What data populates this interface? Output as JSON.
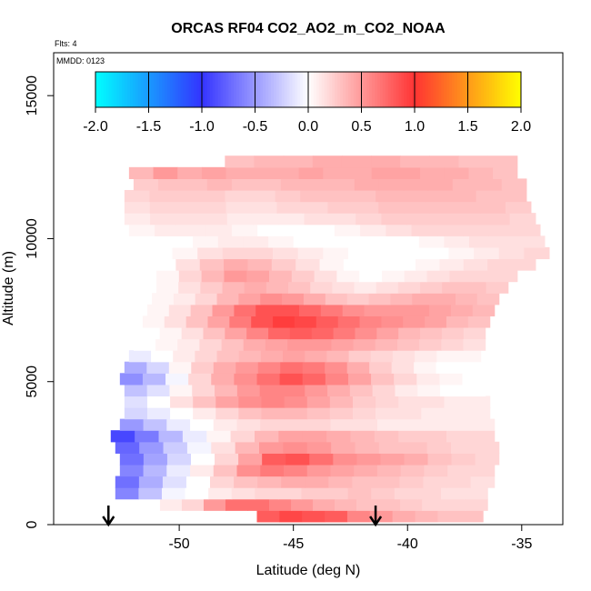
{
  "chart_data": {
    "type": "heatmap",
    "title": "ORCAS RF04 CO2_AO2_m_CO2_NOAA",
    "subtitle_flights": "Flts: 4",
    "subtitle_mmdd": "MMDD: 0123",
    "xlabel": "Latitude (deg N)",
    "ylabel": "Altitude (m)",
    "xlim": [
      -55.5,
      -33.2
    ],
    "ylim": [
      0,
      16500
    ],
    "x_ticks": [
      -50,
      -45,
      -40,
      -35
    ],
    "x_tick_labels": [
      "-50",
      "-45",
      "-40",
      "-35"
    ],
    "y_ticks": [
      0,
      5000,
      10000,
      15000
    ],
    "y_tick_labels": [
      "0",
      "5000",
      "10000",
      "15000"
    ],
    "colorbar": {
      "range": [
        -2.0,
        2.0
      ],
      "ticks": [
        -2.0,
        -1.5,
        -1.0,
        -0.5,
        0.0,
        0.5,
        1.0,
        1.5,
        2.0
      ],
      "tick_labels": [
        "-2.0",
        "-1.5",
        "-1.0",
        "-0.5",
        "0.0",
        "0.5",
        "1.0",
        "1.5",
        "2.0"
      ],
      "colors": [
        "#00ffff",
        "#3333ff",
        "#ffffff",
        "#ff3333",
        "#ffff00"
      ]
    },
    "markers": [
      {
        "label": "down-arrow",
        "x": -53.1
      },
      {
        "label": "down-arrow",
        "x": -41.4
      }
    ],
    "bands": [
      {
        "alt": 300,
        "lat_start": -46.6,
        "lat_end": -36.7,
        "values": [
          0.8,
          0.9,
          0.85,
          0.8,
          0.6,
          0.5,
          0.4,
          0.35,
          0.3,
          0.3
        ]
      },
      {
        "alt": 700,
        "lat_start": -51.8,
        "lat_end": -36.5,
        "values": [
          0.0,
          0.1,
          0.2,
          0.5,
          0.7,
          0.7,
          0.6,
          0.5,
          0.4,
          0.35,
          0.3,
          0.3,
          0.25,
          0.2,
          0.2,
          0.2
        ]
      },
      {
        "alt": 1100,
        "lat_start": -52.8,
        "lat_end": -36.5,
        "values": [
          -0.6,
          -0.3,
          -0.05,
          0.0,
          0.1,
          0.15,
          0.2,
          0.2,
          0.25,
          0.25,
          0.3,
          0.25,
          0.2,
          0.2,
          0.15,
          0.15
        ]
      },
      {
        "alt": 1500,
        "lat_start": -52.8,
        "lat_end": -36.2,
        "values": [
          -0.7,
          -0.4,
          -0.15,
          0.0,
          0.2,
          0.3,
          0.35,
          0.4,
          0.4,
          0.35,
          0.3,
          0.3,
          0.25,
          0.2,
          0.2,
          0.15
        ]
      },
      {
        "alt": 1900,
        "lat_start": -52.6,
        "lat_end": -36.2,
        "values": [
          -0.6,
          -0.35,
          -0.1,
          0.1,
          0.3,
          0.55,
          0.65,
          0.6,
          0.5,
          0.45,
          0.4,
          0.35,
          0.3,
          0.25,
          0.2,
          0.2
        ]
      },
      {
        "alt": 2300,
        "lat_start": -52.6,
        "lat_end": -36.0,
        "values": [
          -0.7,
          -0.45,
          -0.2,
          0.0,
          0.2,
          0.45,
          0.8,
          0.85,
          0.7,
          0.55,
          0.5,
          0.45,
          0.4,
          0.3,
          0.25,
          0.2
        ]
      },
      {
        "alt": 2700,
        "lat_start": -52.8,
        "lat_end": -36.0,
        "values": [
          -0.75,
          -0.5,
          -0.25,
          -0.05,
          0.15,
          0.35,
          0.5,
          0.55,
          0.5,
          0.4,
          0.35,
          0.3,
          0.3,
          0.25,
          0.2,
          0.2
        ]
      },
      {
        "alt": 3100,
        "lat_start": -53.0,
        "lat_end": -36.2,
        "values": [
          -0.9,
          -0.65,
          -0.35,
          -0.1,
          0.05,
          0.2,
          0.35,
          0.45,
          0.45,
          0.4,
          0.35,
          0.3,
          0.25,
          0.25,
          0.2,
          0.2
        ]
      },
      {
        "alt": 3500,
        "lat_start": -52.6,
        "lat_end": -36.2,
        "values": [
          -0.5,
          -0.3,
          -0.1,
          0.0,
          0.1,
          0.15,
          0.2,
          0.2,
          0.2,
          0.15,
          0.15,
          0.1,
          0.1,
          0.1,
          0.1,
          0.1
        ]
      },
      {
        "alt": 3900,
        "lat_start": -52.4,
        "lat_end": -36.4,
        "values": [
          -0.2,
          -0.1,
          0.0,
          0.1,
          0.2,
          0.3,
          0.35,
          0.35,
          0.3,
          0.25,
          0.2,
          0.15,
          0.15,
          0.1,
          0.1,
          0.1
        ]
      },
      {
        "alt": 4300,
        "lat_start": -52.4,
        "lat_end": -36.4,
        "values": [
          -0.15,
          0.0,
          0.15,
          0.3,
          0.45,
          0.55,
          0.6,
          0.55,
          0.45,
          0.35,
          0.25,
          0.2,
          0.15,
          0.15,
          0.1,
          0.1
        ]
      },
      {
        "alt": 4700,
        "lat_start": -52.4,
        "lat_end": -36.6,
        "values": [
          -0.3,
          -0.15,
          0.05,
          0.2,
          0.35,
          0.5,
          0.6,
          0.6,
          0.5,
          0.4,
          0.3,
          0.2,
          0.1,
          0.05,
          0.0,
          0.0
        ]
      },
      {
        "alt": 5100,
        "lat_start": -52.6,
        "lat_end": -36.6,
        "values": [
          -0.55,
          -0.35,
          -0.05,
          0.2,
          0.4,
          0.55,
          0.7,
          0.85,
          0.75,
          0.6,
          0.45,
          0.3,
          0.2,
          0.1,
          0.05,
          0.0
        ]
      },
      {
        "alt": 5500,
        "lat_start": -52.4,
        "lat_end": -36.8,
        "values": [
          -0.4,
          -0.2,
          0.05,
          0.25,
          0.4,
          0.5,
          0.6,
          0.7,
          0.65,
          0.55,
          0.4,
          0.25,
          0.15,
          0.05,
          0.0,
          0.0
        ]
      },
      {
        "alt": 5900,
        "lat_start": -52.2,
        "lat_end": -36.8,
        "values": [
          -0.1,
          0.0,
          0.1,
          0.2,
          0.3,
          0.35,
          0.4,
          0.45,
          0.4,
          0.35,
          0.25,
          0.2,
          0.15,
          0.1,
          0.05,
          0.05
        ]
      },
      {
        "alt": 6300,
        "lat_start": -52.0,
        "lat_end": -36.6,
        "values": [
          0.0,
          0.05,
          0.1,
          0.2,
          0.3,
          0.4,
          0.45,
          0.5,
          0.5,
          0.45,
          0.4,
          0.35,
          0.3,
          0.25,
          0.2,
          0.15
        ]
      },
      {
        "alt": 6700,
        "lat_start": -51.8,
        "lat_end": -36.6,
        "values": [
          0.0,
          0.05,
          0.15,
          0.3,
          0.45,
          0.6,
          0.75,
          0.8,
          0.75,
          0.65,
          0.55,
          0.45,
          0.35,
          0.3,
          0.25,
          0.2
        ]
      },
      {
        "alt": 7100,
        "lat_start": -51.6,
        "lat_end": -36.4,
        "values": [
          0.05,
          0.15,
          0.3,
          0.45,
          0.65,
          0.85,
          0.95,
          0.9,
          0.8,
          0.7,
          0.6,
          0.55,
          0.5,
          0.45,
          0.35,
          0.3
        ]
      },
      {
        "alt": 7500,
        "lat_start": -51.4,
        "lat_end": -36.2,
        "values": [
          0.05,
          0.15,
          0.3,
          0.5,
          0.7,
          0.85,
          0.85,
          0.75,
          0.65,
          0.55,
          0.5,
          0.5,
          0.5,
          0.45,
          0.4,
          0.35
        ]
      },
      {
        "alt": 7900,
        "lat_start": -51.2,
        "lat_end": -36.0,
        "values": [
          0.05,
          0.1,
          0.2,
          0.35,
          0.45,
          0.55,
          0.5,
          0.4,
          0.3,
          0.25,
          0.3,
          0.35,
          0.4,
          0.4,
          0.35,
          0.3
        ]
      },
      {
        "alt": 8300,
        "lat_start": -51.0,
        "lat_end": -35.6,
        "values": [
          0.05,
          0.15,
          0.25,
          0.35,
          0.4,
          0.35,
          0.3,
          0.2,
          0.15,
          0.1,
          0.15,
          0.2,
          0.25,
          0.3,
          0.3,
          0.25
        ]
      },
      {
        "alt": 8700,
        "lat_start": -51.0,
        "lat_end": -35.2,
        "values": [
          0.05,
          0.2,
          0.35,
          0.5,
          0.45,
          0.35,
          0.25,
          0.15,
          0.05,
          0.0,
          0.05,
          0.1,
          0.15,
          0.2,
          0.2,
          0.2
        ]
      },
      {
        "alt": 9100,
        "lat_start": -51.2,
        "lat_end": -34.4,
        "values": [
          0.0,
          0.15,
          0.3,
          0.4,
          0.35,
          0.25,
          0.15,
          0.05,
          0.0,
          0.0,
          0.0,
          0.05,
          0.1,
          0.15,
          0.2,
          0.2
        ]
      },
      {
        "alt": 9500,
        "lat_start": -51.4,
        "lat_end": -33.8,
        "values": [
          0.0,
          0.05,
          0.15,
          0.2,
          0.2,
          0.15,
          0.1,
          0.05,
          0.0,
          0.0,
          0.0,
          0.0,
          0.05,
          0.1,
          0.15,
          0.2
        ]
      },
      {
        "alt": 9900,
        "lat_start": -51.6,
        "lat_end": -34.0,
        "values": [
          0.0,
          0.0,
          0.05,
          0.1,
          0.1,
          0.05,
          0.0,
          0.0,
          0.0,
          0.0,
          0.0,
          0.05,
          0.1,
          0.15,
          0.15,
          0.15
        ]
      },
      {
        "alt": 10300,
        "lat_start": -52.2,
        "lat_end": -34.2,
        "values": [
          0.05,
          0.1,
          0.1,
          0.1,
          0.05,
          0.0,
          0.0,
          0.0,
          0.05,
          0.1,
          0.15,
          0.2,
          0.2,
          0.2,
          0.2,
          0.2
        ]
      },
      {
        "alt": 10700,
        "lat_start": -52.4,
        "lat_end": -34.4,
        "values": [
          0.1,
          0.15,
          0.15,
          0.15,
          0.1,
          0.1,
          0.1,
          0.15,
          0.15,
          0.2,
          0.25,
          0.25,
          0.25,
          0.25,
          0.25,
          0.2
        ]
      },
      {
        "alt": 11100,
        "lat_start": -52.4,
        "lat_end": -34.6,
        "values": [
          0.15,
          0.2,
          0.2,
          0.2,
          0.15,
          0.15,
          0.2,
          0.2,
          0.25,
          0.25,
          0.3,
          0.3,
          0.3,
          0.3,
          0.3,
          0.25
        ]
      },
      {
        "alt": 11500,
        "lat_start": -52.4,
        "lat_end": -34.8,
        "values": [
          0.2,
          0.25,
          0.25,
          0.25,
          0.2,
          0.2,
          0.25,
          0.3,
          0.3,
          0.3,
          0.35,
          0.35,
          0.35,
          0.35,
          0.3,
          0.3
        ]
      },
      {
        "alt": 11900,
        "lat_start": -52.0,
        "lat_end": -34.8,
        "values": [
          0.25,
          0.3,
          0.3,
          0.35,
          0.3,
          0.3,
          0.35,
          0.35,
          0.35,
          0.4,
          0.4,
          0.4,
          0.4,
          0.35,
          0.35,
          0.3
        ]
      },
      {
        "alt": 12300,
        "lat_start": -52.2,
        "lat_end": -35.2,
        "values": [
          0.35,
          0.5,
          0.4,
          0.45,
          0.4,
          0.4,
          0.4,
          0.45,
          0.4,
          0.4,
          0.45,
          0.45,
          0.4,
          0.4,
          0.35,
          0.3
        ]
      },
      {
        "alt": 12700,
        "lat_start": -48.0,
        "lat_end": -35.2,
        "values": [
          0.3,
          0.35,
          0.35,
          0.4,
          0.4,
          0.4,
          0.35,
          0.35,
          0.3,
          0.3
        ]
      }
    ],
    "band_half_height": 200
  }
}
